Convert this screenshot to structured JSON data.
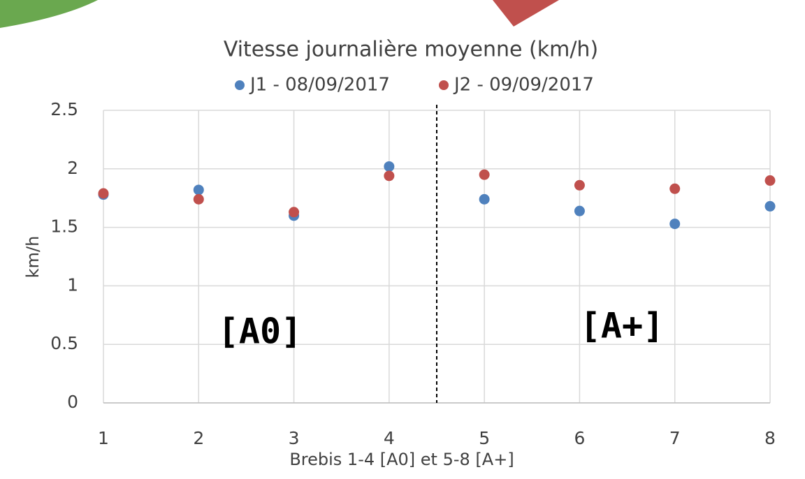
{
  "chart_data": {
    "type": "scatter",
    "title": "Vitesse journalière moyenne (km/h)",
    "xlabel": "Brebis 1-4 [A0] et 5-8 [A+]",
    "ylabel": "km/h",
    "x": [
      1,
      2,
      3,
      4,
      5,
      6,
      7,
      8
    ],
    "series": [
      {
        "name": "J1 - 08/09/2017",
        "color": "#4f81bd",
        "values": [
          1.78,
          1.82,
          1.6,
          2.02,
          1.74,
          1.64,
          1.53,
          1.68
        ]
      },
      {
        "name": "J2 - 09/09/2017",
        "color": "#c0504d",
        "values": [
          1.79,
          1.74,
          1.63,
          1.94,
          1.95,
          1.86,
          1.83,
          1.9
        ]
      }
    ],
    "xlim": [
      1,
      8
    ],
    "xticks": [
      1,
      2,
      3,
      4,
      5,
      6,
      7,
      8
    ],
    "ylim": [
      0,
      2.5
    ],
    "yticks": [
      0,
      0.5,
      1,
      1.5,
      2,
      2.5
    ],
    "grid": true,
    "vlines": [
      4.5
    ],
    "annotations": [
      "[A0]",
      "[A+]"
    ],
    "legend": "top"
  }
}
